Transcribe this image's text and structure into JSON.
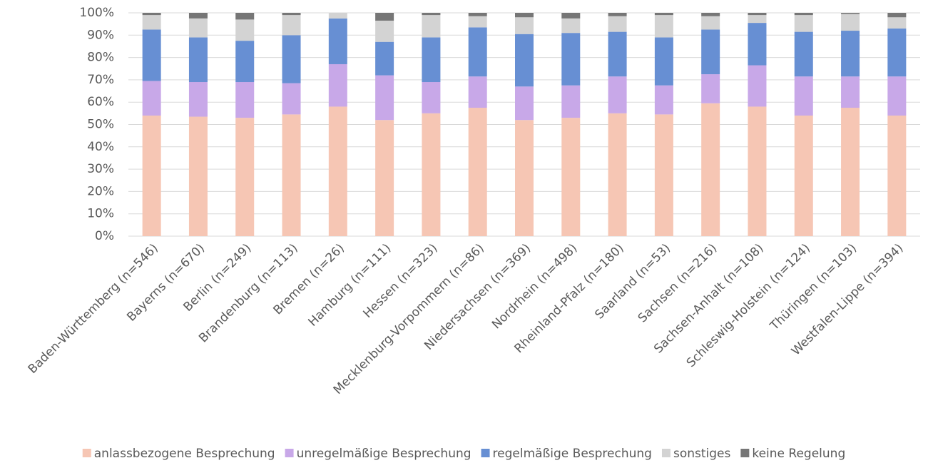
{
  "chart_data": {
    "type": "stacked_bar",
    "categories": [
      "Baden-Württemberg (n=546)",
      "Bayerns (n=670)",
      "Berlin (n=249)",
      "Brandenburg (n=113)",
      "Bremen (n=26)",
      "Hamburg (n=111)",
      "Hessen (n=323)",
      "Mecklenburg-Vorpommern (n=86)",
      "Niedersachsen (n=369)",
      "Nordrhein (n=498)",
      "Rheinland-Pfalz (n=180)",
      "Saarland (n=53)",
      "Sachsen (n=216)",
      "Sachsen-Anhalt (n=108)",
      "Schleswig-Holstein (n=124)",
      "Thüringen (n=103)",
      "Westfalen-Lippe (n=394)"
    ],
    "series": [
      {
        "name": "anlassbezogene Besprechung",
        "color": "#f6c6b4",
        "values": [
          54,
          53.5,
          53,
          54.5,
          58,
          52,
          55,
          57.5,
          52,
          53,
          55,
          54.5,
          59.5,
          58,
          54,
          57.5,
          54
        ]
      },
      {
        "name": "unregelmäßige Besprechung",
        "color": "#c8a8e8",
        "values": [
          15.5,
          15.5,
          16,
          14,
          19,
          20,
          14,
          14,
          15,
          14.5,
          16.5,
          13,
          13,
          18.5,
          17.5,
          14,
          17.5
        ]
      },
      {
        "name": "regelmäßige Besprechung",
        "color": "#678fd3",
        "values": [
          23,
          20,
          18.5,
          21.5,
          20.5,
          15,
          20,
          22,
          23.5,
          23.5,
          20,
          21.5,
          20,
          19,
          20,
          20.5,
          21.5
        ]
      },
      {
        "name": "sonstiges",
        "color": "#d3d3d3",
        "values": [
          6.5,
          8.5,
          9.5,
          9,
          2.5,
          9.5,
          10,
          5,
          7.5,
          6.5,
          7,
          10,
          6,
          3.5,
          7.5,
          7.5,
          5
        ]
      },
      {
        "name": "keine Regelung",
        "color": "#767676",
        "values": [
          1,
          2.5,
          3,
          1,
          0,
          3.5,
          1,
          1.5,
          2,
          2.5,
          1.5,
          1,
          1.5,
          1,
          1,
          0.5,
          2
        ]
      }
    ],
    "ylim": [
      0,
      100
    ],
    "yticks": [
      {
        "value": 0,
        "label": "0%"
      },
      {
        "value": 10,
        "label": "10%"
      },
      {
        "value": 20,
        "label": "20%"
      },
      {
        "value": 30,
        "label": "30%"
      },
      {
        "value": 40,
        "label": "40%"
      },
      {
        "value": 50,
        "label": "50%"
      },
      {
        "value": 60,
        "label": "60%"
      },
      {
        "value": 70,
        "label": "70%"
      },
      {
        "value": 80,
        "label": "80%"
      },
      {
        "value": 90,
        "label": "90%"
      },
      {
        "value": 100,
        "label": "100%"
      }
    ],
    "grid": true,
    "legend": "bottom"
  }
}
